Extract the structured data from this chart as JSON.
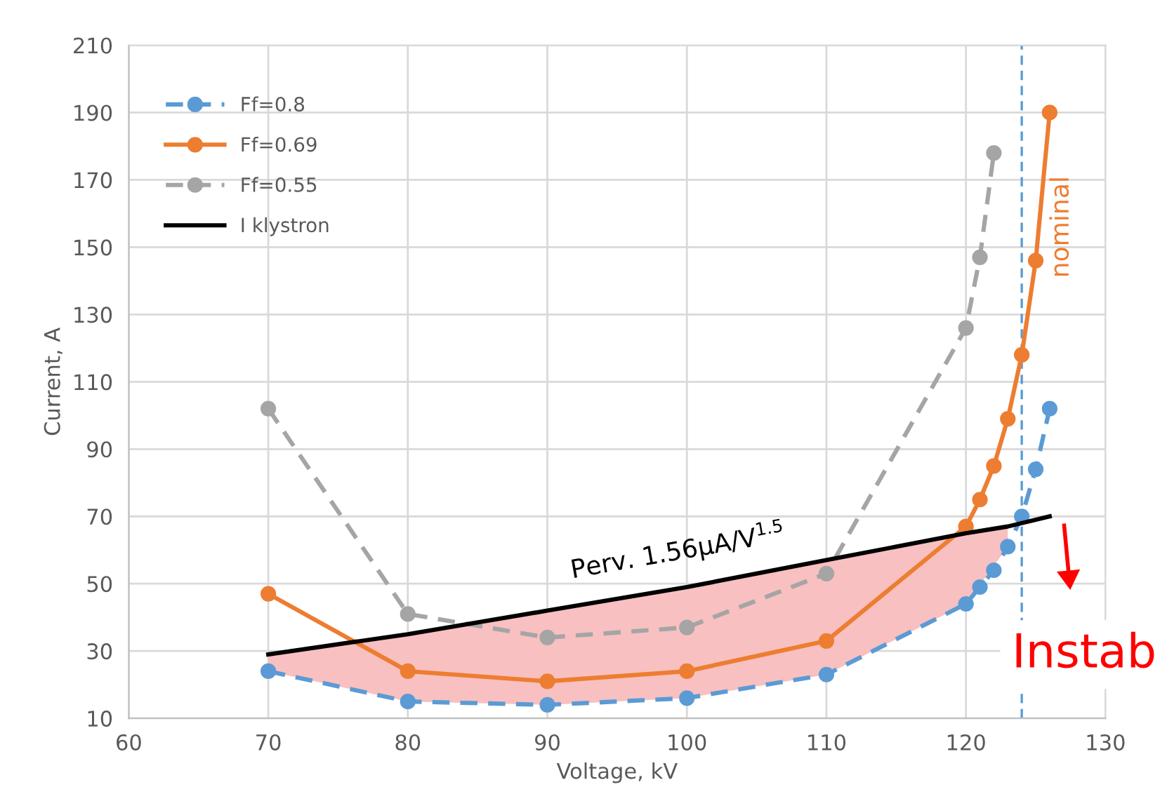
{
  "chart_data": {
    "type": "line",
    "xlabel": "Voltage, kV",
    "ylabel": "Current, A",
    "xlim": [
      60,
      130
    ],
    "xticks": [
      60,
      70,
      80,
      90,
      100,
      110,
      120,
      130
    ],
    "ylim": [
      10,
      210
    ],
    "yticks": [
      10,
      30,
      50,
      70,
      90,
      110,
      130,
      150,
      170,
      190,
      210
    ],
    "grid": true,
    "legend": "top left",
    "marker": "circle",
    "series": [
      {
        "name": "Ff=0.8",
        "color": "#5b9bd5",
        "line_style": "dashed",
        "x": [
          70,
          80,
          90,
          100,
          110,
          120,
          121,
          122,
          123,
          124,
          125,
          126
        ],
        "values": [
          24,
          15,
          14,
          16,
          23,
          44,
          49,
          54,
          61,
          70,
          84,
          102
        ]
      },
      {
        "name": "Ff=0.69",
        "color": "#ed7d31",
        "line_style": "solid",
        "x": [
          70,
          80,
          90,
          100,
          110,
          120,
          121,
          122,
          123,
          124,
          125,
          126
        ],
        "values": [
          47,
          24,
          21,
          24,
          33,
          67,
          75,
          85,
          99,
          118,
          146,
          190
        ]
      },
      {
        "name": "Ff=0.55",
        "color": "#a5a5a5",
        "line_style": "dashed",
        "x": [
          70,
          80,
          90,
          100,
          110,
          120,
          121,
          122
        ],
        "values": [
          102,
          41,
          34,
          37,
          53,
          126,
          147,
          178
        ]
      },
      {
        "name": "I klystron",
        "color": "#000000",
        "line_style": "solid",
        "marker": "none",
        "x": [
          70,
          80,
          90,
          100,
          110,
          120,
          123,
          126
        ],
        "values": [
          29,
          35,
          42,
          49,
          57,
          65,
          67,
          70
        ],
        "lower": [
          24,
          15,
          14,
          16,
          23,
          44,
          61,
          null
        ],
        "upper": [
          29,
          35,
          42,
          49,
          57,
          65,
          67,
          null
        ]
      }
    ],
    "ref_lines": [
      {
        "axis": "x",
        "value": 124,
        "color": "#5b9bd5",
        "line_style": "dashed"
      }
    ],
    "annotations": [
      "Perv. 1.56μA/V$^{1.5}$",
      "nominal",
      "Instab"
    ]
  }
}
